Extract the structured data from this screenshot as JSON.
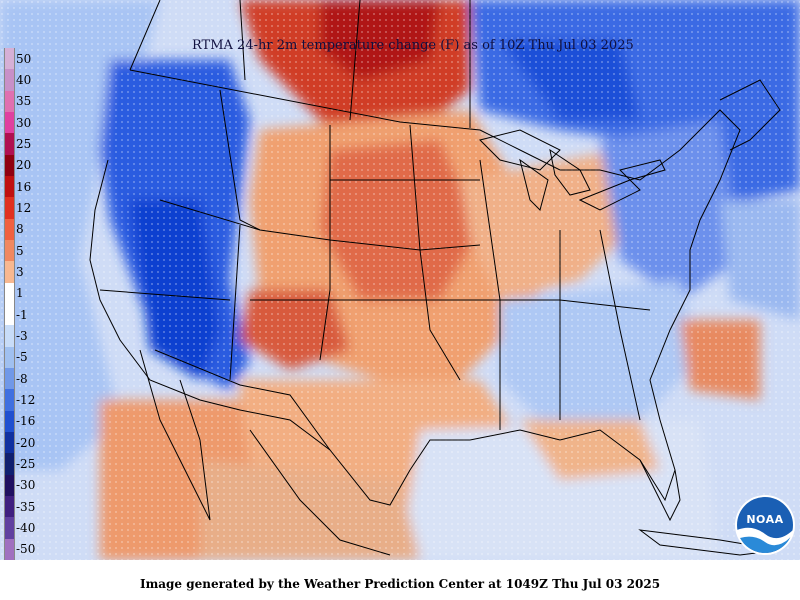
{
  "title": "RTMA 24-hr 2m temperature change (F) as of 10Z Thu Jul 03 2025",
  "footer": "Image generated by the Weather Prediction Center at 1049Z Thu Jul 03 2025",
  "logo": {
    "text": "NOAA",
    "icon": "noaa-logo-icon"
  },
  "legend": {
    "labels": [
      "50",
      "40",
      "35",
      "30",
      "25",
      "20",
      "16",
      "12",
      "8",
      "5",
      "3",
      "1",
      "-1",
      "-3",
      "-5",
      "-8",
      "-12",
      "-16",
      "-20",
      "-25",
      "-30",
      "-35",
      "-40",
      "-50"
    ],
    "colors": [
      "#d6b0d6",
      "#c890c8",
      "#e070b0",
      "#e040a0",
      "#b01050",
      "#900010",
      "#c01010",
      "#e03020",
      "#f06040",
      "#f08860",
      "#f8b890",
      "#ffffff",
      "#ffffff",
      "#c8dcf8",
      "#a0c0f0",
      "#7098e8",
      "#4070e0",
      "#2050d0",
      "#1030a0",
      "#102070",
      "#201060",
      "#402080",
      "#6040a0",
      "#a070c0"
    ]
  },
  "colors": {
    "warm_strong": "#d03020",
    "warm": "#f0a070",
    "cool": "#8ab0f0",
    "cool_strong": "#1848d8",
    "outline": "#000000"
  }
}
